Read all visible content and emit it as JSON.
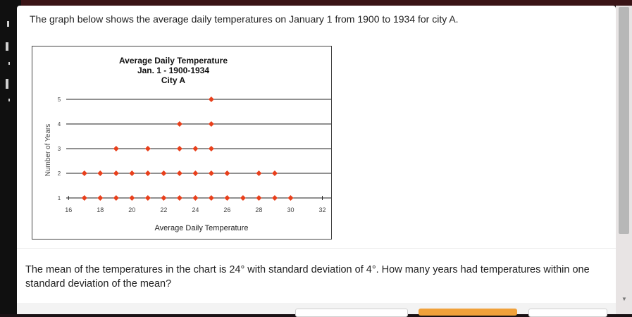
{
  "question": {
    "text": "The graph below shows the average daily temperatures on January 1 from 1900 to 1934 for city A."
  },
  "chart_data": {
    "type": "scatter",
    "title_lines": [
      "Average Daily Temperature",
      "Jan. 1 - 1900-1934",
      "City A"
    ],
    "xlabel": "Average Daily Temperature",
    "ylabel": "Number of Years",
    "xticks": [
      16,
      18,
      20,
      22,
      24,
      26,
      28,
      30,
      32
    ],
    "yticks": [
      1,
      2,
      3,
      4,
      5
    ],
    "xlim": [
      15.5,
      33
    ],
    "ylim": [
      1,
      5
    ],
    "grid": "horizontal",
    "marker_color": "#e8401c",
    "series": [
      {
        "x": [
          17,
          18,
          19,
          20,
          21,
          22,
          23,
          24,
          25,
          26,
          27,
          28,
          29,
          30,
          17,
          18,
          19,
          20,
          21,
          22,
          23,
          24,
          25,
          26,
          28,
          29,
          19,
          21,
          23,
          24,
          25,
          23,
          25,
          25
        ],
        "y": [
          1,
          1,
          1,
          1,
          1,
          1,
          1,
          1,
          1,
          1,
          1,
          1,
          1,
          1,
          2,
          2,
          2,
          2,
          2,
          2,
          2,
          2,
          2,
          2,
          2,
          2,
          3,
          3,
          3,
          3,
          3,
          4,
          4,
          5
        ]
      }
    ]
  },
  "answer": {
    "prompt": "The mean of the temperatures in the chart is 24° with standard deviation of 4°. How many years had temperatures within one standard deviation of the mean?"
  }
}
